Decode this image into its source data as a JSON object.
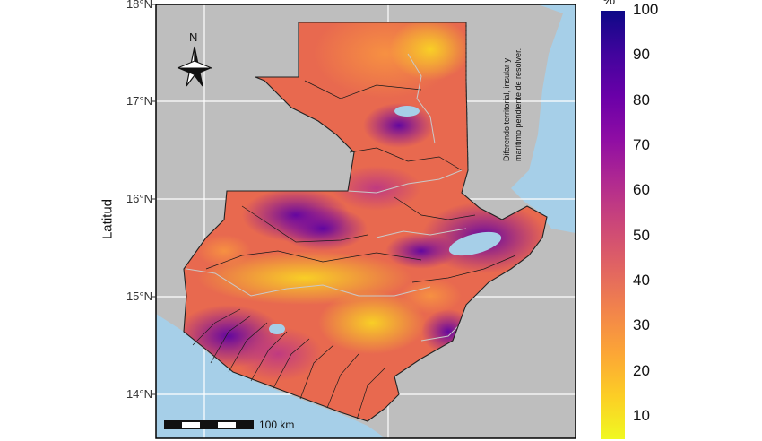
{
  "map": {
    "latitude_ticks": [
      "18°N",
      "17°N",
      "16°N",
      "15°N",
      "14°N"
    ],
    "ylabel": "Latitud",
    "scale_bar_label": "100 km",
    "north_arrow_label": "N",
    "territory_note_line1": "Diferendo territorial, insular y",
    "territory_note_line2": "marítimo pendiente de resolver."
  },
  "legend": {
    "title": "%",
    "labels": [
      "100",
      "90",
      "80",
      "70",
      "60",
      "50",
      "40",
      "30",
      "20",
      "10"
    ],
    "colormap": "plasma",
    "range": [
      5,
      100
    ]
  },
  "colors": {
    "land_background": "#bebebe",
    "water": "#a6cfe8",
    "frame": "#000000"
  }
}
